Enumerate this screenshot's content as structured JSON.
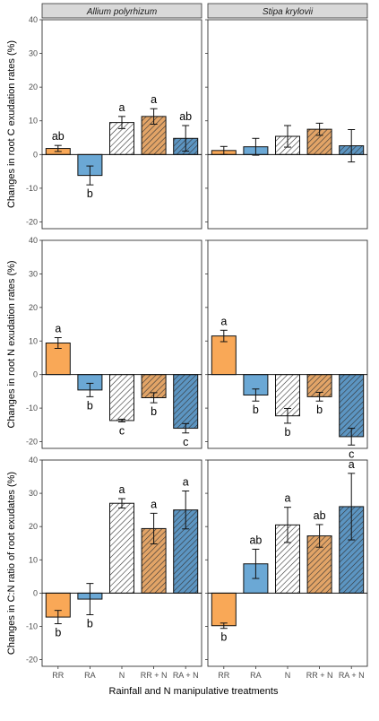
{
  "colors": {
    "RR": "#F9A857",
    "RA": "#6BA8D5",
    "N": "#FFFFFF",
    "RR + N": "#E2A467",
    "RA + N": "#5C95C2",
    "strip_bg": "#D9D9D9",
    "hatch": "#333333"
  },
  "chart_data": {
    "type": "bar",
    "xlabel": "Rainfall and N manipulative treatments",
    "categories": [
      "RR",
      "RA",
      "N",
      "RR + N",
      "RA + N"
    ],
    "hatched": [
      false,
      false,
      true,
      true,
      true
    ],
    "facets": [
      "Allium polyrhizum",
      "Stipa krylovii"
    ],
    "yticks": [
      -20,
      -10,
      0,
      10,
      20,
      30,
      40
    ],
    "rows": [
      {
        "ylabel": "Changes in root C exudation rates (%)",
        "ylim": [
          -22,
          40
        ],
        "panels": [
          {
            "values": [
              1.8,
              -6.2,
              9.5,
              11.3,
              4.8
            ],
            "errors": [
              0.9,
              2.8,
              1.8,
              2.3,
              3.8
            ],
            "letters": [
              "ab",
              "b",
              "a",
              "a",
              "ab"
            ]
          },
          {
            "values": [
              1.2,
              2.3,
              5.4,
              7.5,
              2.6
            ],
            "errors": [
              1.2,
              2.5,
              3.2,
              1.8,
              4.8
            ],
            "letters": [
              "",
              "",
              "",
              "",
              ""
            ]
          }
        ]
      },
      {
        "ylabel": "Changes in root N exudation rates (%)",
        "ylim": [
          -22,
          40
        ],
        "panels": [
          {
            "values": [
              9.4,
              -4.6,
              -13.7,
              -6.9,
              -16.0
            ],
            "errors": [
              1.6,
              2.0,
              0.4,
              1.5,
              1.4
            ],
            "letters": [
              "a",
              "b",
              "c",
              "b",
              "c"
            ]
          },
          {
            "values": [
              11.5,
              -6.1,
              -12.3,
              -6.6,
              -18.5
            ],
            "errors": [
              1.7,
              1.8,
              2.2,
              1.3,
              2.5
            ],
            "letters": [
              "a",
              "b",
              "b",
              "b",
              "c"
            ]
          }
        ]
      },
      {
        "ylabel": "Changes in C:N ratio of root exudates (%)",
        "ylim": [
          -22,
          40
        ],
        "panels": [
          {
            "values": [
              -7.2,
              -1.8,
              27.0,
              19.4,
              25.0
            ],
            "errors": [
              2.0,
              4.7,
              1.4,
              4.6,
              5.7
            ],
            "letters": [
              "b",
              "b",
              "a",
              "a",
              "a"
            ]
          },
          {
            "values": [
              -9.8,
              8.8,
              20.5,
              17.2,
              26.0
            ],
            "errors": [
              0.8,
              4.4,
              5.3,
              3.4,
              10.0
            ],
            "letters": [
              "b",
              "ab",
              "a",
              "ab",
              "a"
            ]
          }
        ]
      }
    ]
  }
}
